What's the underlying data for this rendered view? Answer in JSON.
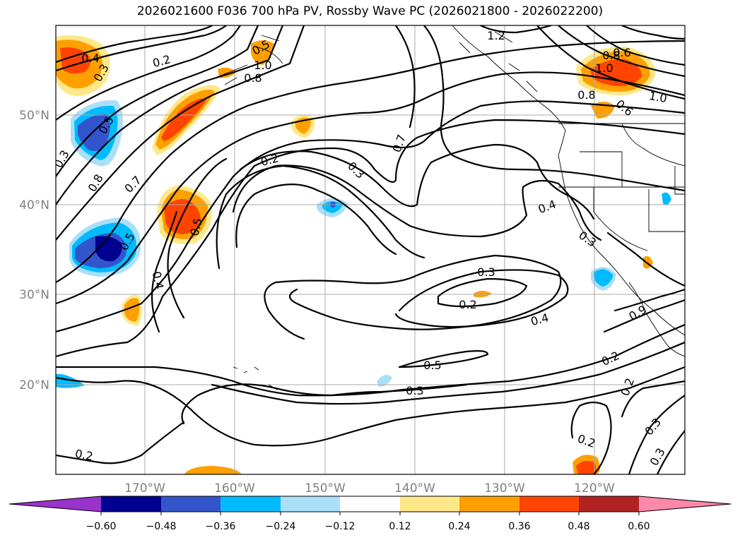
{
  "title": "2026021600 F036 700 hPa PV, Rossby Wave PC (2026021800 - 2026022200)",
  "map": {
    "lat_labels": [
      "50°N",
      "40°N",
      "30°N",
      "20°N"
    ],
    "lon_labels": [
      "170°W",
      "160°W",
      "150°W",
      "140°W",
      "130°W",
      "120°W"
    ],
    "contour_labels": [
      "0.4",
      "0.3",
      "0.2",
      "0.8",
      "1.0",
      "0.5",
      "0.8",
      "0.6",
      "1.2",
      "1.0",
      "1.0",
      "0.8",
      "0.6",
      "0.3",
      "0.8",
      "0.7",
      "0.5",
      "0.5",
      "0.2",
      "0.3",
      "0.7",
      "0.4",
      "0.3",
      "0.4",
      "0.3",
      "0.2",
      "0.4",
      "0.5",
      "0.3",
      "0.2",
      "0.2",
      "0.3",
      "0.3",
      "0.2",
      "0.2",
      "0.9",
      "0.5"
    ]
  },
  "colorbar": {
    "ticks": [
      "−0.60",
      "−0.48",
      "−0.36",
      "−0.24",
      "−0.12",
      "0.12",
      "0.24",
      "0.36",
      "0.48",
      "0.60"
    ],
    "colors": [
      "#9933cc",
      "#000090",
      "#3355cc",
      "#00bbff",
      "#aadff8",
      "#ffffff",
      "#ffe88a",
      "#ffa000",
      "#ff4400",
      "#b22222",
      "#ff88aa"
    ]
  }
}
